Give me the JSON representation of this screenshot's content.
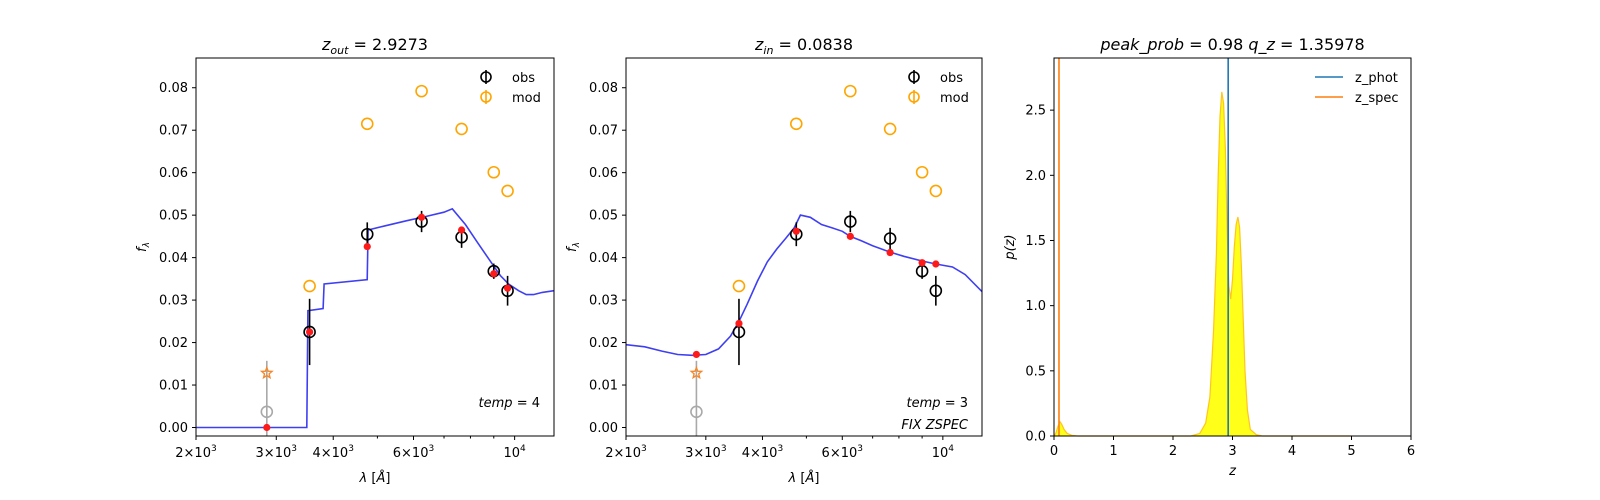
{
  "colors": {
    "sed": "#3f3ff2",
    "obs": "#000000",
    "mod": "#ffa500",
    "model_point": "#ff1a1a",
    "upper_limit": "#a9a9a9",
    "star": "#f4882a",
    "z_phot": "#1f77b4",
    "z_spec": "#ff7f0e",
    "pz_fill": "#ffff1a",
    "pz_edge": "#ffc61a"
  },
  "chart_data": [
    {
      "type": "scatter",
      "title": "z_out = 2.9273",
      "title_parts": {
        "symbol": "z",
        "sub": "out",
        "value": "= 2.9273"
      },
      "xlabel": "λ [Å]",
      "ylabel": "f_λ",
      "xscale": "log",
      "xlim": [
        2000,
        12200
      ],
      "ylim": [
        -0.002,
        0.087
      ],
      "xticks": [
        {
          "value": 2000,
          "base": "2×10",
          "exp": "3"
        },
        {
          "value": 3000,
          "base": "3×10",
          "exp": "3"
        },
        {
          "value": 4000,
          "base": "4×10",
          "exp": "3"
        },
        {
          "value": 6000,
          "base": "6×10",
          "exp": "3"
        },
        {
          "value": 10000,
          "base": "10",
          "exp": "4"
        }
      ],
      "yticks": [
        "0.00",
        "0.01",
        "0.02",
        "0.03",
        "0.04",
        "0.05",
        "0.06",
        "0.07",
        "0.08"
      ],
      "legend": {
        "position": "top-right",
        "entries": [
          "obs",
          "mod"
        ]
      },
      "annotations": [
        "temp = 4"
      ],
      "sed_line": {
        "x": [
          2000,
          3500,
          3520,
          3800,
          3820,
          4750,
          4770,
          5200,
          5800,
          6400,
          7000,
          7300,
          7800,
          8300,
          8800,
          9300,
          9700,
          10200,
          10600,
          11000,
          11500,
          12200
        ],
        "y": [
          0.0,
          0.0,
          0.0275,
          0.028,
          0.0338,
          0.0348,
          0.0465,
          0.0475,
          0.0487,
          0.0497,
          0.0507,
          0.0515,
          0.0478,
          0.0435,
          0.0395,
          0.0358,
          0.0338,
          0.0322,
          0.0313,
          0.0313,
          0.0318,
          0.0322
        ]
      },
      "obs": {
        "x": [
          2860,
          3550,
          4750,
          6250,
          7650,
          9000,
          9650
        ],
        "y": [
          0.0037,
          0.0225,
          0.0455,
          0.0485,
          0.0448,
          0.0368,
          0.0322
        ],
        "err": [
          0.012,
          0.0078,
          0.0028,
          0.0025,
          0.0025,
          0.0018,
          0.0035
        ]
      },
      "mod": {
        "x": [
          3550,
          4750,
          6250,
          7650,
          9000,
          9650
        ],
        "y": [
          0.0333,
          0.0715,
          0.0792,
          0.0703,
          0.0601,
          0.0557
        ]
      },
      "model_points": {
        "x": [
          2860,
          3550,
          4750,
          6250,
          7650,
          9000,
          9650
        ],
        "y": [
          0.0,
          0.0225,
          0.0426,
          0.0495,
          0.0465,
          0.0362,
          0.0328
        ]
      },
      "upper_limit_index": 0,
      "star": {
        "x": 2860,
        "y": 0.0128
      }
    },
    {
      "type": "scatter",
      "title": "z_in = 0.0838",
      "title_parts": {
        "symbol": "z",
        "sub": "in",
        "value": "= 0.0838"
      },
      "xlabel": "λ [Å]",
      "ylabel": "f_λ",
      "xscale": "log",
      "xlim": [
        2000,
        12200
      ],
      "ylim": [
        -0.002,
        0.087
      ],
      "xticks": [
        {
          "value": 2000,
          "base": "2×10",
          "exp": "3"
        },
        {
          "value": 3000,
          "base": "3×10",
          "exp": "3"
        },
        {
          "value": 4000,
          "base": "4×10",
          "exp": "3"
        },
        {
          "value": 6000,
          "base": "6×10",
          "exp": "3"
        },
        {
          "value": 10000,
          "base": "10",
          "exp": "4"
        }
      ],
      "yticks": [
        "0.00",
        "0.01",
        "0.02",
        "0.03",
        "0.04",
        "0.05",
        "0.06",
        "0.07",
        "0.08"
      ],
      "legend": {
        "position": "top-right",
        "entries": [
          "obs",
          "mod"
        ]
      },
      "annotations": [
        "temp = 3",
        "FIX ZSPEC"
      ],
      "sed_line": {
        "x": [
          2000,
          2200,
          2400,
          2600,
          2800,
          3000,
          3200,
          3400,
          3550,
          3700,
          3900,
          4100,
          4300,
          4500,
          4700,
          4850,
          5100,
          5400,
          5700,
          6000,
          6250,
          6600,
          7000,
          7650,
          8200,
          9000,
          9650,
          10500,
          11200,
          12200
        ],
        "y": [
          0.0195,
          0.019,
          0.018,
          0.0172,
          0.017,
          0.0172,
          0.0185,
          0.0215,
          0.025,
          0.029,
          0.0345,
          0.039,
          0.042,
          0.0445,
          0.047,
          0.05,
          0.0495,
          0.0478,
          0.047,
          0.0462,
          0.045,
          0.044,
          0.0428,
          0.0413,
          0.0403,
          0.0392,
          0.0385,
          0.0378,
          0.036,
          0.032
        ]
      },
      "obs": {
        "x": [
          2860,
          3550,
          4750,
          6250,
          7650,
          9000,
          9650
        ],
        "y": [
          0.0037,
          0.0225,
          0.0455,
          0.0485,
          0.0445,
          0.0368,
          0.0322
        ],
        "err": [
          0.012,
          0.0078,
          0.0028,
          0.0025,
          0.0025,
          0.0018,
          0.0035
        ]
      },
      "mod": {
        "x": [
          3550,
          4750,
          6250,
          7650,
          9000,
          9650
        ],
        "y": [
          0.0333,
          0.0715,
          0.0792,
          0.0703,
          0.0601,
          0.0557
        ]
      },
      "model_points": {
        "x": [
          2860,
          3550,
          4750,
          6250,
          7650,
          9000,
          9650
        ],
        "y": [
          0.0172,
          0.0245,
          0.0462,
          0.045,
          0.0412,
          0.0388,
          0.0385
        ]
      },
      "upper_limit_index": 0,
      "star": {
        "x": 2860,
        "y": 0.0128
      }
    },
    {
      "type": "area",
      "title": "peak_prob = 0.98     q_z = 1.35978",
      "title_parts": {
        "left": "peak_prob",
        "left_value": "= 0.98",
        "right": "q_z",
        "right_value": "= 1.35978"
      },
      "xlabel": "z",
      "ylabel": "p(z)",
      "xlim": [
        0,
        6
      ],
      "ylim": [
        0,
        2.9
      ],
      "xticks": [
        "0",
        "1",
        "2",
        "3",
        "4",
        "5",
        "6"
      ],
      "yticks": [
        "0.0",
        "0.5",
        "1.0",
        "1.5",
        "2.0",
        "2.5"
      ],
      "legend": {
        "position": "top-right",
        "entries": [
          "z_phot",
          "z_spec"
        ]
      },
      "z_phot": 2.9273,
      "z_spec": 0.0838,
      "pz": {
        "z": [
          0.0,
          0.03,
          0.07,
          0.1,
          0.13,
          0.17,
          0.22,
          0.3,
          0.4,
          2.3,
          2.45,
          2.55,
          2.62,
          2.68,
          2.73,
          2.76,
          2.79,
          2.82,
          2.85,
          2.88,
          2.91,
          2.94,
          2.97,
          3.0,
          3.03,
          3.06,
          3.09,
          3.12,
          3.15,
          3.18,
          3.21,
          3.25,
          3.3,
          3.4,
          3.5,
          5.0
        ],
        "p": [
          0.0,
          0.02,
          0.08,
          0.11,
          0.09,
          0.05,
          0.02,
          0.005,
          0.0,
          0.0,
          0.02,
          0.1,
          0.3,
          0.8,
          1.4,
          2.0,
          2.45,
          2.64,
          2.55,
          2.2,
          1.6,
          1.15,
          1.05,
          1.2,
          1.45,
          1.62,
          1.68,
          1.6,
          1.3,
          0.9,
          0.5,
          0.2,
          0.05,
          0.01,
          0.0,
          0.0
        ]
      }
    }
  ]
}
